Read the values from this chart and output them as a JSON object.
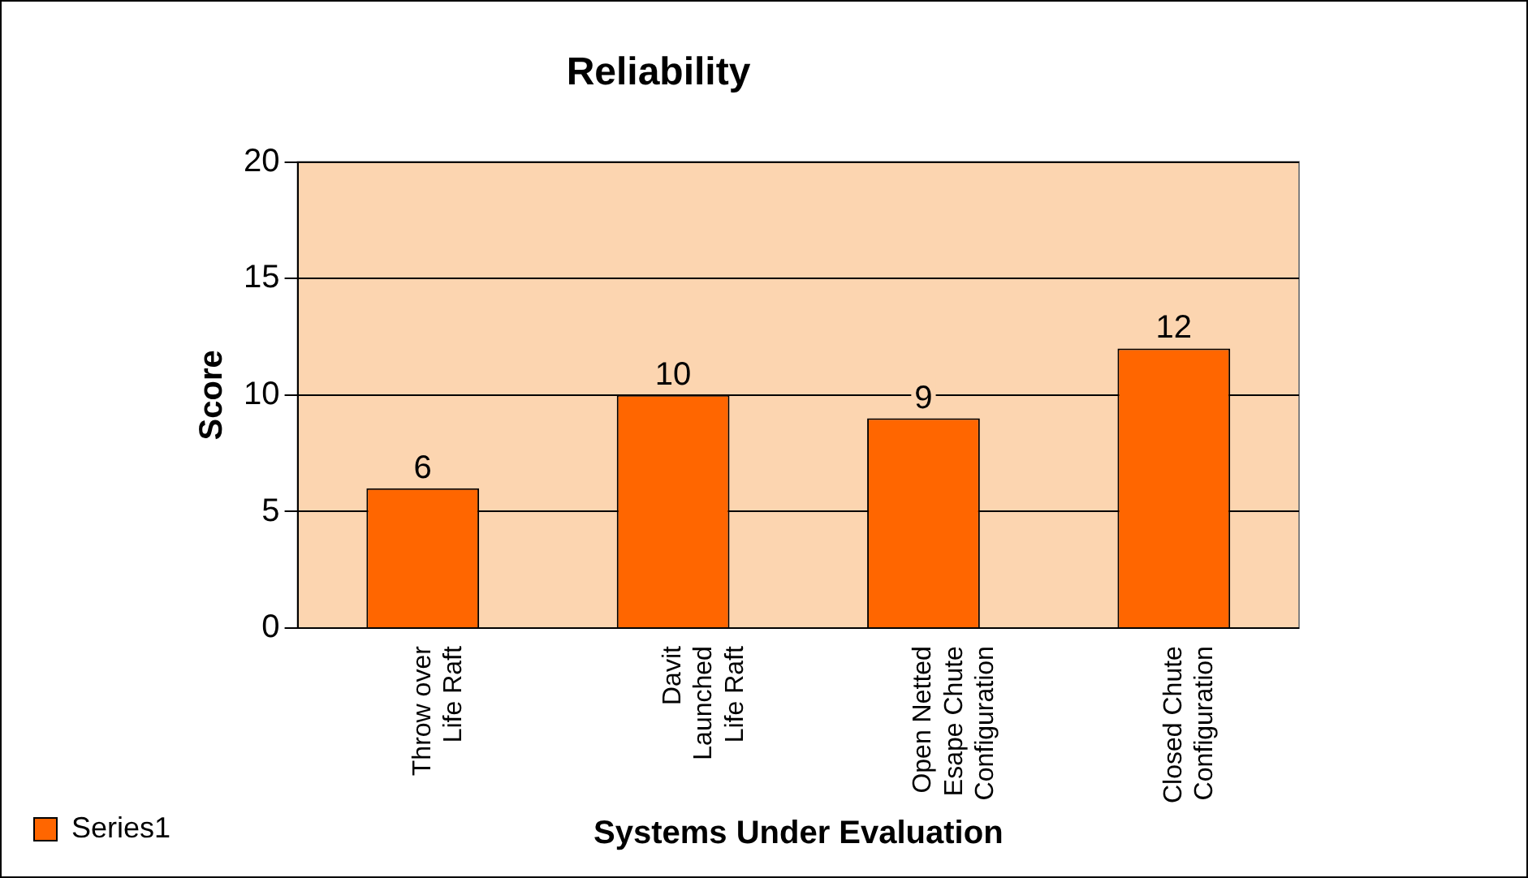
{
  "chart_data": {
    "type": "bar",
    "title": "Reliability",
    "xlabel": "Systems Under Evaluation",
    "ylabel": "Score",
    "categories": [
      "Throw over Life Raft",
      "Davit Launched Life Raft",
      "Open Netted Esape Chute Configuration",
      "Closed Chute Configuration"
    ],
    "series": [
      {
        "name": "Series1",
        "color": "#ff6600",
        "values": [
          6,
          10,
          9,
          12
        ]
      }
    ],
    "ylim": [
      0,
      20
    ],
    "yticks": [
      0,
      5,
      10,
      15,
      20
    ],
    "grid": "y",
    "legend": "bottom left",
    "data_labels": true
  }
}
